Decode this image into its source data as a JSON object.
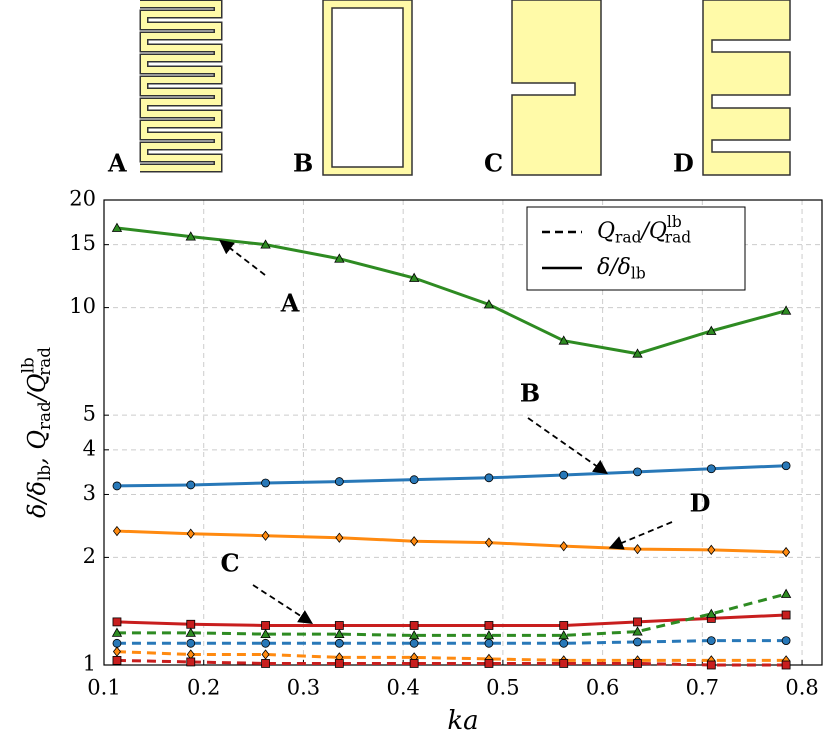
{
  "icons": [
    "A",
    "B",
    "C",
    "D"
  ],
  "chart_data": {
    "type": "line",
    "log_y": true,
    "grid": true,
    "xlabel": "ka",
    "ylabel": [
      {
        "text": "δ/δ",
        "shift": "none"
      },
      {
        "text": "lb",
        "shift": "sub"
      },
      {
        "text": ",   Q",
        "shift": "none"
      },
      {
        "text": "rad",
        "shift": "sub"
      },
      {
        "text": "/Q",
        "shift": "none"
      },
      {
        "text": "lb",
        "shift": "sup"
      },
      {
        "text": "rad",
        "shift": "sub"
      }
    ],
    "legend": [
      {
        "dash": true,
        "label": [
          {
            "text": "Q",
            "shift": "none"
          },
          {
            "text": "rad",
            "shift": "sub"
          },
          {
            "text": "/Q",
            "shift": "none"
          },
          {
            "text": "lb",
            "shift": "sup"
          },
          {
            "text": "rad",
            "shift": "sub"
          }
        ]
      },
      {
        "dash": false,
        "label": [
          {
            "text": "δ/δ",
            "shift": "none"
          },
          {
            "text": "lb",
            "shift": "sub"
          }
        ]
      }
    ],
    "legend_position": "upper right",
    "annotations": [
      "A",
      "B",
      "C",
      "D"
    ],
    "xlim": [
      0.1,
      0.82
    ],
    "xticks": [
      0.1,
      0.2,
      0.3,
      0.4,
      0.5,
      0.6,
      0.7,
      0.8
    ],
    "ylim": [
      1,
      20
    ],
    "yticks": [
      1,
      2,
      3,
      4,
      5,
      10,
      15,
      20
    ],
    "x": [
      0.113,
      0.187,
      0.262,
      0.336,
      0.411,
      0.486,
      0.561,
      0.635,
      0.709,
      0.784
    ],
    "series": [
      {
        "color": "#2e8b22",
        "marker": "triangle",
        "dash": false,
        "values": [
          16.7,
          15.8,
          15.0,
          13.7,
          12.1,
          10.2,
          8.08,
          7.43,
          8.6,
          9.8
        ]
      },
      {
        "color": "#2878b8",
        "marker": "circle",
        "dash": false,
        "values": [
          3.17,
          3.19,
          3.23,
          3.26,
          3.3,
          3.34,
          3.4,
          3.47,
          3.54,
          3.61
        ]
      },
      {
        "color": "#ff8a10",
        "marker": "diamond",
        "dash": false,
        "values": [
          2.37,
          2.33,
          2.3,
          2.27,
          2.22,
          2.2,
          2.15,
          2.11,
          2.1,
          2.07
        ]
      },
      {
        "color": "#c81e1e",
        "marker": "square",
        "dash": false,
        "values": [
          1.32,
          1.3,
          1.29,
          1.29,
          1.29,
          1.29,
          1.29,
          1.32,
          1.35,
          1.38
        ]
      },
      {
        "color": "#2e8b22",
        "marker": "triangle",
        "dash": true,
        "values": [
          1.23,
          1.23,
          1.22,
          1.22,
          1.21,
          1.21,
          1.21,
          1.24,
          1.39,
          1.58
        ]
      },
      {
        "color": "#2878b8",
        "marker": "circle",
        "dash": true,
        "values": [
          1.15,
          1.15,
          1.15,
          1.15,
          1.15,
          1.15,
          1.15,
          1.16,
          1.17,
          1.17
        ]
      },
      {
        "color": "#ff8a10",
        "marker": "diamond",
        "dash": true,
        "values": [
          1.09,
          1.07,
          1.07,
          1.05,
          1.05,
          1.04,
          1.03,
          1.03,
          1.03,
          1.03
        ]
      },
      {
        "color": "#c81e1e",
        "marker": "square",
        "dash": true,
        "values": [
          1.03,
          1.02,
          1.01,
          1.01,
          1.01,
          1.01,
          1.01,
          1.01,
          1.0,
          1.0
        ]
      }
    ]
  }
}
